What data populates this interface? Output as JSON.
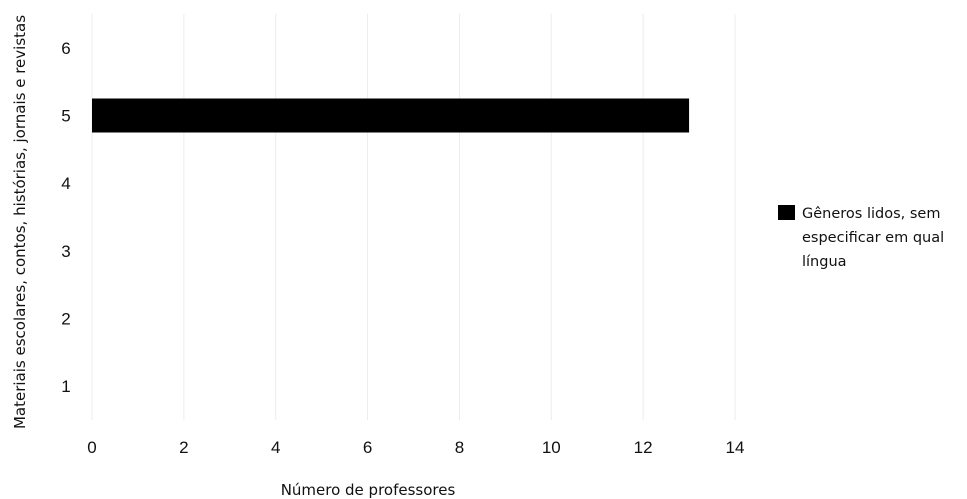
{
  "chart_data": {
    "type": "bar",
    "orientation": "horizontal",
    "categories": [
      "1",
      "2",
      "3",
      "4",
      "5",
      "6"
    ],
    "series": [
      {
        "name": "Gêneros lidos, sem especificar em qual língua",
        "values": [
          0,
          0,
          0,
          0,
          13,
          0
        ],
        "color": "#000000"
      }
    ],
    "x_ticks": [
      "0",
      "2",
      "4",
      "6",
      "8",
      "10",
      "12",
      "14"
    ],
    "xlabel": "Número de professores",
    "ylabel": "Materiais escolares, contos, histórias, jornais e revistas",
    "xlim": [
      0,
      14
    ],
    "grid": true,
    "legend_position": "right",
    "legend_lines": [
      "Gêneros lidos, sem",
      "especificar em qual",
      "língua"
    ]
  }
}
